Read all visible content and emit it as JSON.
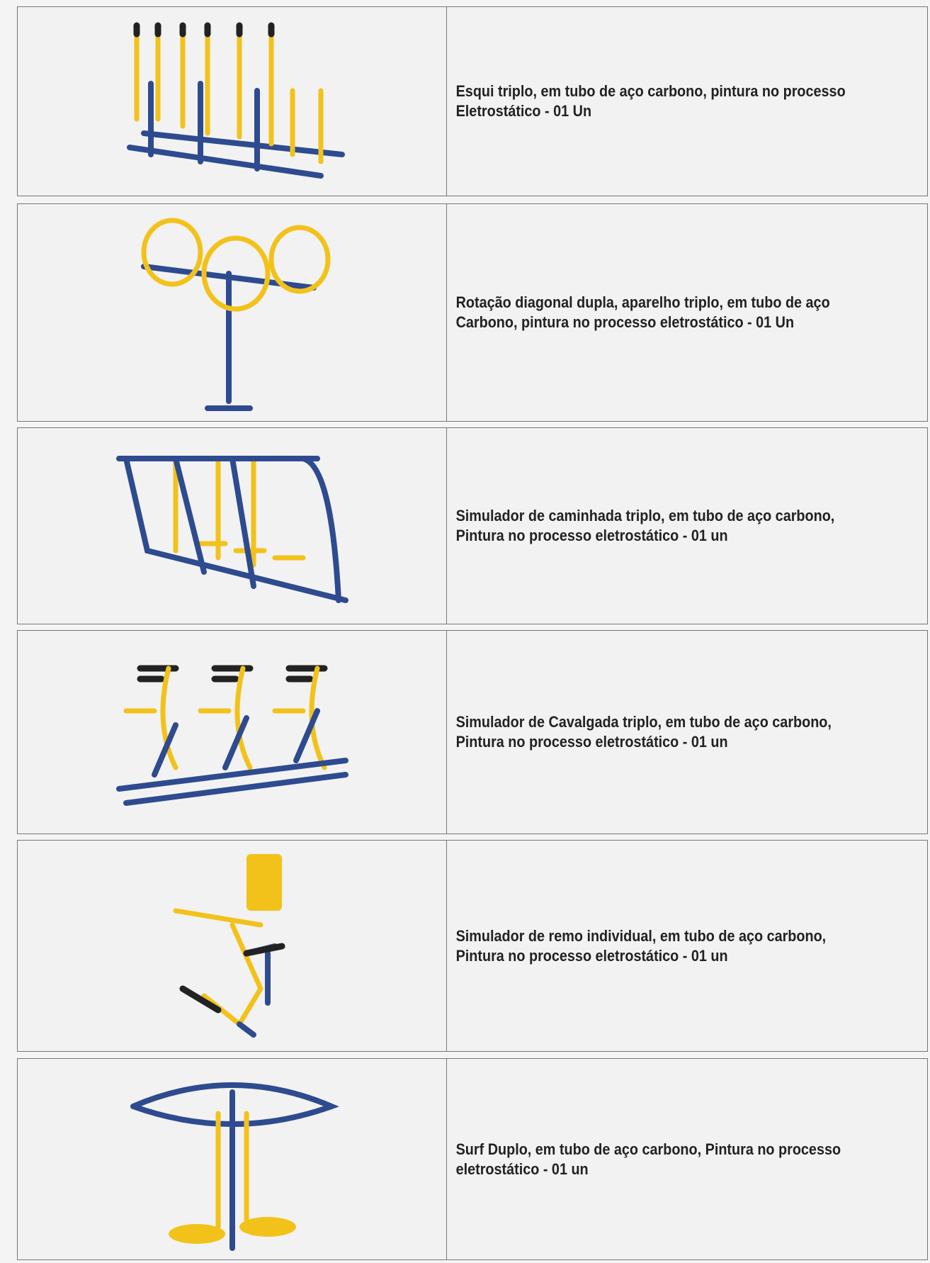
{
  "rows": [
    {
      "description": "Esqui triplo, em tubo de aço carbono, pintura no processo Eletrostático - 01 Un"
    },
    {
      "description": "Rotação diagonal dupla, aparelho triplo, em tubo de aço Carbono, pintura no processo eletrostático - 01 Un"
    },
    {
      "description": "Simulador de caminhada triplo, em tubo de aço carbono, Pintura no processo eletrostático - 01 un"
    },
    {
      "description": "Simulador de Cavalgada triplo, em tubo de aço carbono, Pintura no processo eletrostático - 01 un"
    },
    {
      "description": "Simulador de remo individual, em tubo de aço carbono, Pintura no processo eletrostático - 01 un"
    },
    {
      "description": "Surf Duplo, em tubo de aço carbono, Pintura no processo eletrostático - 01 un"
    }
  ]
}
